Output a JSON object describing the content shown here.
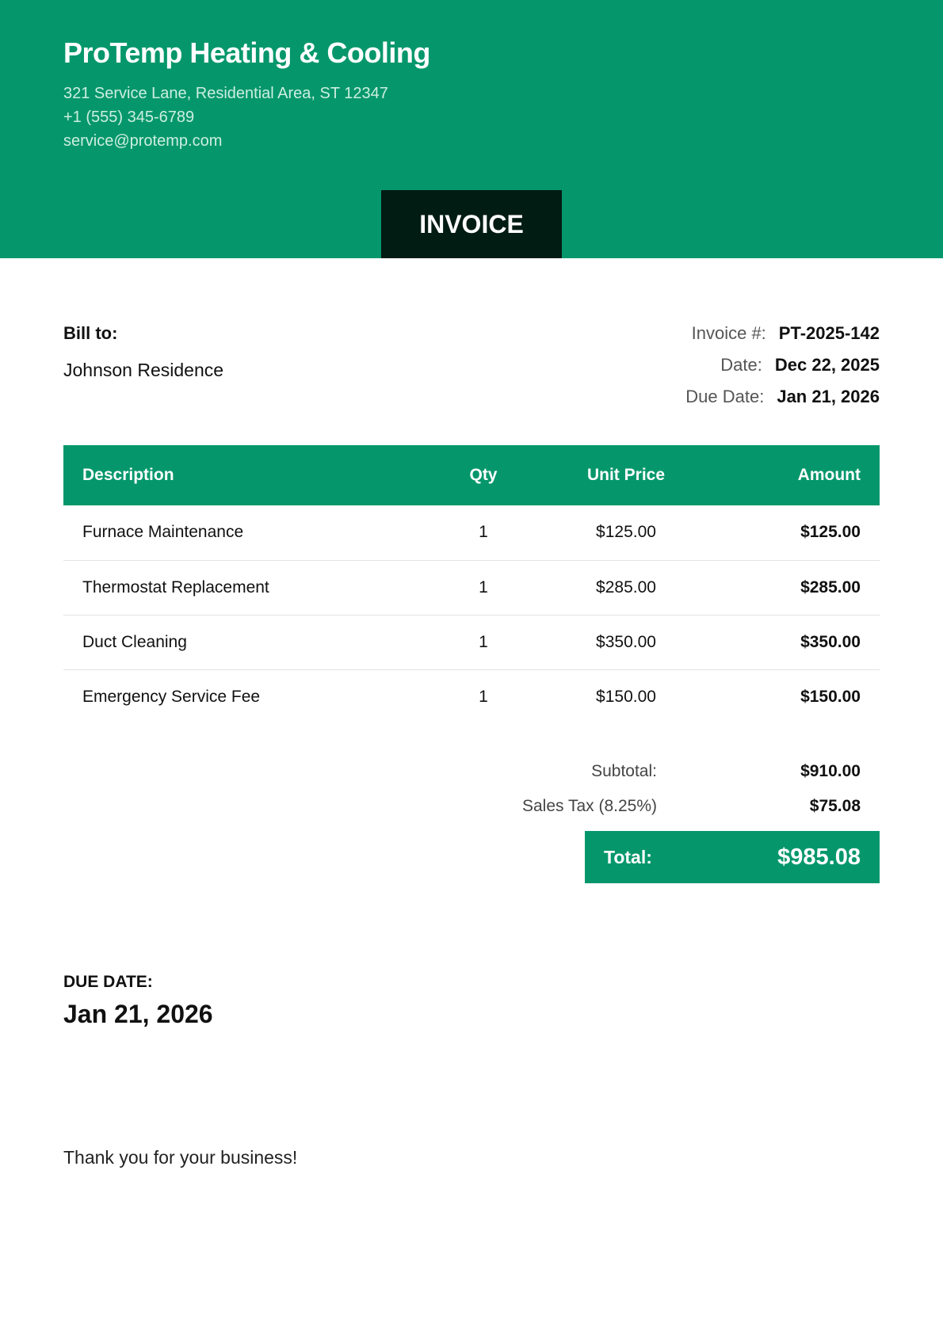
{
  "company": {
    "name": "ProTemp Heating & Cooling",
    "address": "321 Service Lane, Residential Area, ST 12347",
    "phone": "+1 (555) 345-6789",
    "email": "service@protemp.com"
  },
  "doc_title": "INVOICE",
  "colors": {
    "brand": "#05976b",
    "dark": "#011c13"
  },
  "bill_to": {
    "label": "Bill to:",
    "name": "Johnson Residence"
  },
  "meta": [
    {
      "label": "Invoice #:",
      "value": "PT-2025-142"
    },
    {
      "label": "Date:",
      "value": "Dec 22, 2025"
    },
    {
      "label": "Due Date:",
      "value": "Jan 21, 2026"
    }
  ],
  "table": {
    "headers": [
      "Description",
      "Qty",
      "Unit Price",
      "Amount"
    ],
    "rows": [
      [
        "Furnace Maintenance",
        "1",
        "$125.00",
        "$125.00"
      ],
      [
        "Thermostat Replacement",
        "1",
        "$285.00",
        "$285.00"
      ],
      [
        "Duct Cleaning",
        "1",
        "$350.00",
        "$350.00"
      ],
      [
        "Emergency Service Fee",
        "1",
        "$150.00",
        "$150.00"
      ]
    ]
  },
  "totals": {
    "subtotal_label": "Subtotal:",
    "subtotal": "$910.00",
    "tax_label": "Sales Tax (8.25%)",
    "tax": "$75.08",
    "total_label": "Total:",
    "total": "$985.08"
  },
  "due": {
    "label": "DUE DATE:",
    "value": "Jan 21, 2026"
  },
  "footer": "Thank you for your business!"
}
